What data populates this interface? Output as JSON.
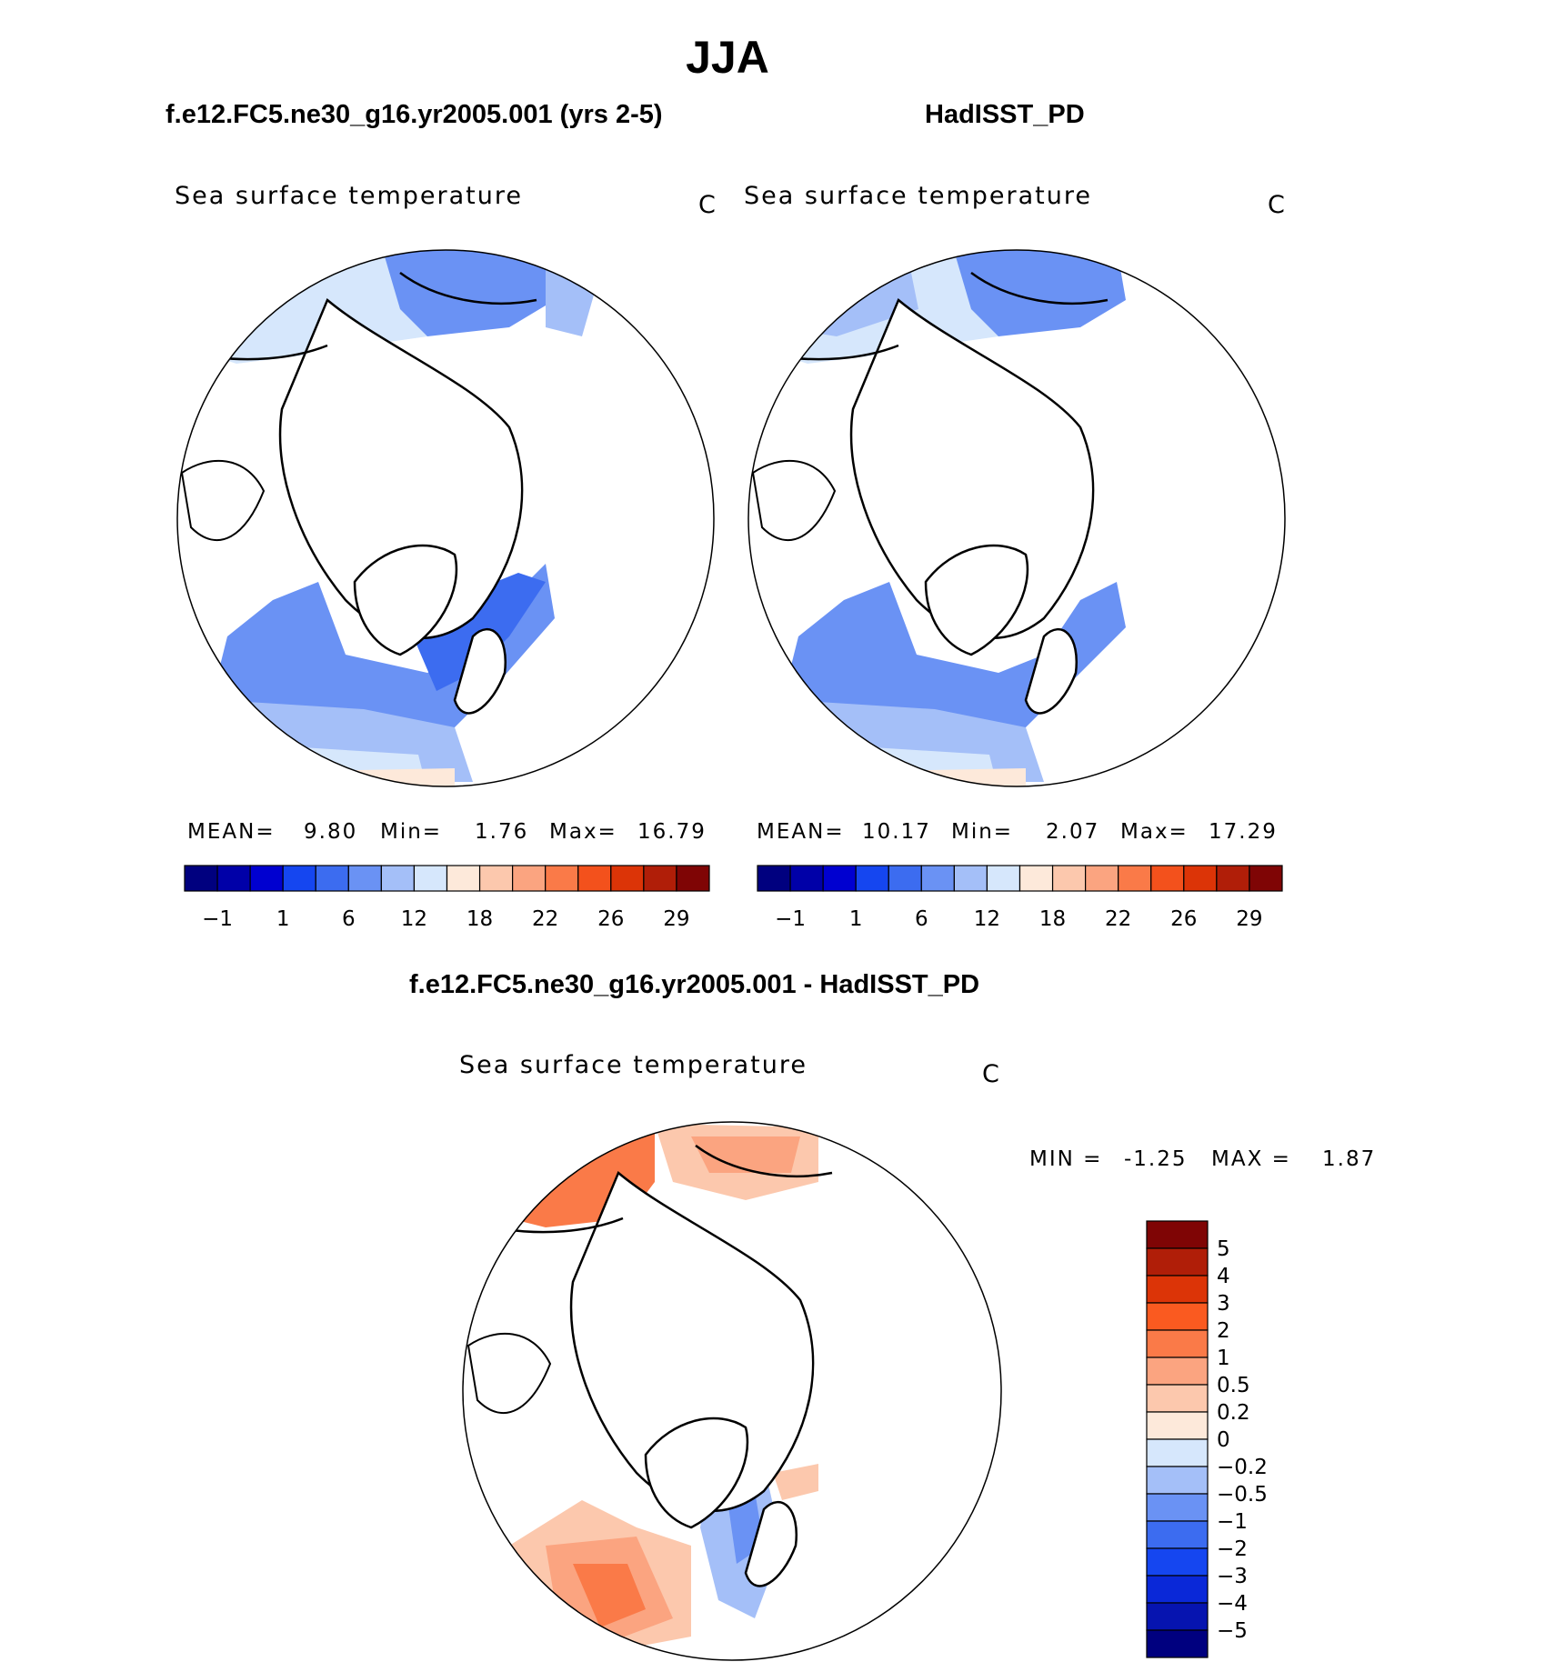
{
  "figure": {
    "title": "JJA",
    "left_title": "f.e12.FC5.ne30_g16.yr2005.001 (yrs 2-5)",
    "right_title": "HadISST_PD",
    "diff_title": "f.e12.FC5.ne30_g16.yr2005.001 - HadISST_PD"
  },
  "chart_data": [
    {
      "type": "heatmap",
      "name": "model",
      "title": "Sea surface temperature",
      "units": "C",
      "stats": {
        "mean_label": "MEAN=",
        "mean": "9.80",
        "min_label": "Min=",
        "min": "1.76",
        "max_label": "Max=",
        "max": "16.79"
      },
      "colorbar": {
        "orientation": "horizontal",
        "colors": [
          "#00007f",
          "#0000a8",
          "#0000d0",
          "#1546f0",
          "#3c6cf0",
          "#6a92f4",
          "#a4bff8",
          "#d6e7fc",
          "#fde9da",
          "#fcc8ad",
          "#fba480",
          "#fa7a48",
          "#f3511c",
          "#dc3407",
          "#b01e08",
          "#7f0505"
        ],
        "tick_labels": [
          "-1",
          "1",
          "6",
          "12",
          "18",
          "22",
          "26",
          "29"
        ]
      }
    },
    {
      "type": "heatmap",
      "name": "observations",
      "title": "Sea surface temperature",
      "units": "C",
      "stats": {
        "mean_label": "MEAN=",
        "mean": "10.17",
        "min_label": "Min=",
        "min": "2.07",
        "max_label": "Max=",
        "max": "17.29"
      },
      "colorbar": {
        "orientation": "horizontal",
        "colors": [
          "#00007f",
          "#0000a8",
          "#0000d0",
          "#1546f0",
          "#3c6cf0",
          "#6a92f4",
          "#a4bff8",
          "#d6e7fc",
          "#fde9da",
          "#fcc8ad",
          "#fba480",
          "#fa7a48",
          "#f3511c",
          "#dc3407",
          "#b01e08",
          "#7f0505"
        ],
        "tick_labels": [
          "-1",
          "1",
          "6",
          "12",
          "18",
          "22",
          "26",
          "29"
        ]
      }
    },
    {
      "type": "heatmap",
      "name": "difference",
      "title": "Sea surface temperature",
      "units": "C",
      "stats": {
        "min_label": "MIN =",
        "min": "-1.25",
        "max_label": "MAX =",
        "max": "1.87"
      },
      "colorbar": {
        "orientation": "vertical",
        "colors": [
          "#7f0505",
          "#b01e08",
          "#dc3407",
          "#fa5a20",
          "#fa7a48",
          "#fba480",
          "#fcc8ad",
          "#fde9da",
          "#d6e7fc",
          "#a4bff8",
          "#6a92f4",
          "#3c6cf0",
          "#1546f0",
          "#0a28d8",
          "#0614b0",
          "#00007f"
        ],
        "tick_labels": [
          "5",
          "4",
          "3",
          "2",
          "1",
          "0.5",
          "0.2",
          "0",
          "-0.2",
          "-0.5",
          "-1",
          "-2",
          "-3",
          "-4",
          "-5"
        ]
      }
    }
  ]
}
